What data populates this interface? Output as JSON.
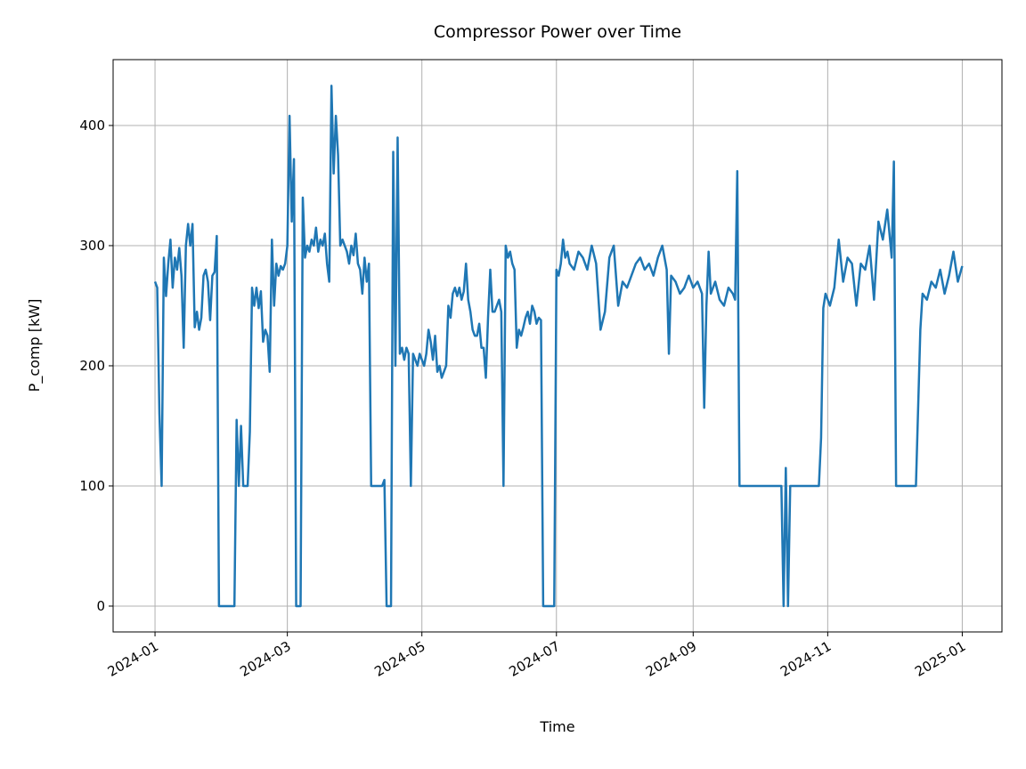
{
  "chart_data": {
    "type": "line",
    "title": "Compressor Power over Time",
    "x_label": "Time",
    "y_label": "P_comp [kW]",
    "xlim": [
      "2023-12-13",
      "2025-01-19"
    ],
    "ylim": [
      -21.5,
      454.8
    ],
    "xticks": [
      "2024-01",
      "2024-03",
      "2024-05",
      "2024-07",
      "2024-09",
      "2024-11",
      "2025-01"
    ],
    "yticks": [
      0,
      100,
      200,
      300,
      400
    ],
    "grid": true,
    "x": [
      "2024-01-01",
      "2024-01-02",
      "2024-01-03",
      "2024-01-04",
      "2024-01-05",
      "2024-01-06",
      "2024-01-07",
      "2024-01-08",
      "2024-01-09",
      "2024-01-10",
      "2024-01-11",
      "2024-01-12",
      "2024-01-13",
      "2024-01-14",
      "2024-01-15",
      "2024-01-16",
      "2024-01-17",
      "2024-01-18",
      "2024-01-19",
      "2024-01-20",
      "2024-01-21",
      "2024-01-22",
      "2024-01-23",
      "2024-01-24",
      "2024-01-25",
      "2024-01-26",
      "2024-01-27",
      "2024-01-28",
      "2024-01-29",
      "2024-01-30",
      "2024-02-06",
      "2024-02-07",
      "2024-02-08",
      "2024-02-09",
      "2024-02-10",
      "2024-02-12",
      "2024-02-13",
      "2024-02-14",
      "2024-02-15",
      "2024-02-16",
      "2024-02-17",
      "2024-02-18",
      "2024-02-19",
      "2024-02-20",
      "2024-02-21",
      "2024-02-22",
      "2024-02-23",
      "2024-02-24",
      "2024-02-25",
      "2024-02-26",
      "2024-02-27",
      "2024-02-28",
      "2024-02-29",
      "2024-03-01",
      "2024-03-02",
      "2024-03-03",
      "2024-03-04",
      "2024-03-05",
      "2024-03-07",
      "2024-03-08",
      "2024-03-09",
      "2024-03-10",
      "2024-03-11",
      "2024-03-12",
      "2024-03-13",
      "2024-03-14",
      "2024-03-15",
      "2024-03-16",
      "2024-03-17",
      "2024-03-18",
      "2024-03-19",
      "2024-03-20",
      "2024-03-21",
      "2024-03-22",
      "2024-03-23",
      "2024-03-24",
      "2024-03-25",
      "2024-03-26",
      "2024-03-27",
      "2024-03-28",
      "2024-03-29",
      "2024-03-30",
      "2024-03-31",
      "2024-04-01",
      "2024-04-02",
      "2024-04-03",
      "2024-04-04",
      "2024-04-05",
      "2024-04-06",
      "2024-04-07",
      "2024-04-08",
      "2024-04-13",
      "2024-04-14",
      "2024-04-15",
      "2024-04-17",
      "2024-04-18",
      "2024-04-19",
      "2024-04-20",
      "2024-04-21",
      "2024-04-22",
      "2024-04-23",
      "2024-04-24",
      "2024-04-25",
      "2024-04-26",
      "2024-04-27",
      "2024-04-28",
      "2024-04-29",
      "2024-04-30",
      "2024-05-01",
      "2024-05-02",
      "2024-05-03",
      "2024-05-04",
      "2024-05-05",
      "2024-05-06",
      "2024-05-07",
      "2024-05-08",
      "2024-05-09",
      "2024-05-10",
      "2024-05-11",
      "2024-05-12",
      "2024-05-13",
      "2024-05-14",
      "2024-05-15",
      "2024-05-16",
      "2024-05-17",
      "2024-05-18",
      "2024-05-19",
      "2024-05-20",
      "2024-05-21",
      "2024-05-22",
      "2024-05-23",
      "2024-05-24",
      "2024-05-25",
      "2024-05-26",
      "2024-05-27",
      "2024-05-28",
      "2024-05-29",
      "2024-05-30",
      "2024-05-31",
      "2024-06-01",
      "2024-06-02",
      "2024-06-03",
      "2024-06-04",
      "2024-06-05",
      "2024-06-06",
      "2024-06-07",
      "2024-06-08",
      "2024-06-09",
      "2024-06-10",
      "2024-06-11",
      "2024-06-12",
      "2024-06-13",
      "2024-06-14",
      "2024-06-15",
      "2024-06-16",
      "2024-06-17",
      "2024-06-18",
      "2024-06-19",
      "2024-06-20",
      "2024-06-21",
      "2024-06-22",
      "2024-06-23",
      "2024-06-24",
      "2024-06-25",
      "2024-06-30",
      "2024-07-01",
      "2024-07-02",
      "2024-07-03",
      "2024-07-04",
      "2024-07-05",
      "2024-07-06",
      "2024-07-07",
      "2024-07-09",
      "2024-07-11",
      "2024-07-13",
      "2024-07-15",
      "2024-07-17",
      "2024-07-19",
      "2024-07-21",
      "2024-07-23",
      "2024-07-25",
      "2024-07-27",
      "2024-07-29",
      "2024-07-31",
      "2024-08-02",
      "2024-08-04",
      "2024-08-06",
      "2024-08-08",
      "2024-08-10",
      "2024-08-12",
      "2024-08-14",
      "2024-08-16",
      "2024-08-18",
      "2024-08-20",
      "2024-08-21",
      "2024-08-22",
      "2024-08-24",
      "2024-08-26",
      "2024-08-28",
      "2024-08-30",
      "2024-09-01",
      "2024-09-03",
      "2024-09-05",
      "2024-09-06",
      "2024-09-07",
      "2024-09-08",
      "2024-09-09",
      "2024-09-11",
      "2024-09-13",
      "2024-09-15",
      "2024-09-17",
      "2024-09-19",
      "2024-09-20",
      "2024-09-21",
      "2024-09-22",
      "2024-10-11",
      "2024-10-12",
      "2024-10-13",
      "2024-10-14",
      "2024-10-15",
      "2024-10-28",
      "2024-10-29",
      "2024-10-30",
      "2024-10-31",
      "2024-11-02",
      "2024-11-04",
      "2024-11-06",
      "2024-11-08",
      "2024-11-10",
      "2024-11-12",
      "2024-11-14",
      "2024-11-16",
      "2024-11-18",
      "2024-11-20",
      "2024-11-22",
      "2024-11-24",
      "2024-11-26",
      "2024-11-28",
      "2024-11-30",
      "2024-12-01",
      "2024-12-02",
      "2024-12-11",
      "2024-12-13",
      "2024-12-14",
      "2024-12-16",
      "2024-12-18",
      "2024-12-20",
      "2024-12-22",
      "2024-12-24",
      "2024-12-26",
      "2024-12-28",
      "2024-12-30",
      "2025-01-01"
    ],
    "series": [
      {
        "color": "#1f77b4",
        "values": [
          270,
          265,
          160,
          100,
          290,
          258,
          285,
          305,
          265,
          290,
          280,
          298,
          275,
          215,
          300,
          318,
          300,
          318,
          232,
          245,
          230,
          240,
          275,
          280,
          270,
          238,
          275,
          278,
          308,
          0,
          0,
          155,
          100,
          150,
          100,
          100,
          145,
          265,
          250,
          265,
          248,
          262,
          220,
          230,
          225,
          195,
          305,
          250,
          285,
          275,
          283,
          280,
          285,
          300,
          408,
          320,
          372,
          0,
          0,
          340,
          290,
          300,
          295,
          305,
          300,
          315,
          295,
          305,
          300,
          310,
          285,
          270,
          433,
          360,
          408,
          375,
          300,
          305,
          300,
          295,
          285,
          300,
          292,
          310,
          285,
          280,
          260,
          290,
          270,
          285,
          100,
          100,
          105,
          0,
          0,
          378,
          200,
          390,
          210,
          215,
          205,
          215,
          210,
          100,
          210,
          205,
          200,
          210,
          205,
          200,
          210,
          230,
          220,
          205,
          225,
          195,
          200,
          190,
          195,
          200,
          250,
          240,
          260,
          265,
          258,
          265,
          255,
          262,
          285,
          255,
          245,
          230,
          225,
          225,
          235,
          215,
          215,
          190,
          240,
          280,
          245,
          245,
          250,
          255,
          245,
          100,
          300,
          290,
          295,
          285,
          280,
          215,
          230,
          225,
          232,
          240,
          245,
          235,
          250,
          245,
          235,
          240,
          238,
          0,
          0,
          280,
          275,
          285,
          305,
          290,
          295,
          285,
          280,
          295,
          290,
          280,
          300,
          285,
          230,
          245,
          290,
          300,
          250,
          270,
          265,
          275,
          285,
          290,
          280,
          285,
          275,
          290,
          300,
          280,
          210,
          275,
          270,
          260,
          265,
          275,
          265,
          270,
          260,
          165,
          250,
          295,
          260,
          270,
          255,
          250,
          265,
          260,
          255,
          362,
          100,
          100,
          0,
          115,
          0,
          100,
          100,
          140,
          248,
          260,
          250,
          265,
          305,
          270,
          290,
          285,
          250,
          285,
          280,
          300,
          255,
          320,
          305,
          330,
          290,
          370,
          100,
          100,
          230,
          260,
          255,
          270,
          265,
          280,
          260,
          275,
          295,
          270,
          283
        ]
      }
    ]
  }
}
